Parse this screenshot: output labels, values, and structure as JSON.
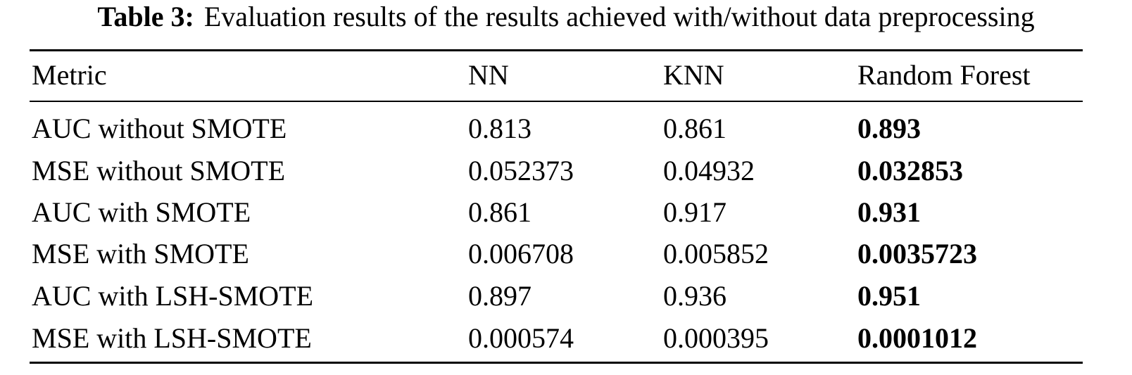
{
  "caption": {
    "label": "Table 3:",
    "text": "Evaluation results of the results achieved with/without data preprocessing"
  },
  "table": {
    "header": [
      "Metric",
      "NN",
      "KNN",
      "Random Forest"
    ],
    "rows": [
      [
        "AUC without SMOTE",
        "0.813",
        "0.861",
        "0.893"
      ],
      [
        "MSE without SMOTE",
        "0.052373",
        "0.04932",
        "0.032853"
      ],
      [
        "AUC with SMOTE",
        "0.861",
        "0.917",
        "0.931"
      ],
      [
        "MSE with SMOTE",
        "0.006708",
        "0.005852",
        "0.0035723"
      ],
      [
        "AUC with LSH-SMOTE",
        "0.897",
        "0.936",
        "0.951"
      ],
      [
        "MSE with LSH-SMOTE",
        "0.000574",
        "0.000395",
        "0.0001012"
      ]
    ]
  }
}
